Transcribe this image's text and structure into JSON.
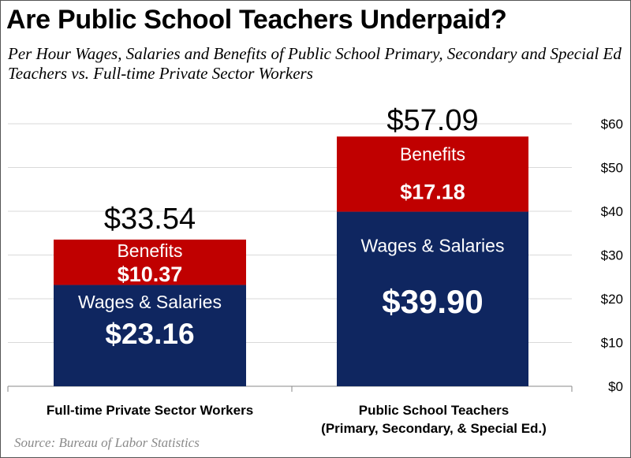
{
  "title": "Are Public School Teachers Underpaid?",
  "subtitle": "Per Hour Wages, Salaries and Benefits of Public School Primary, Secondary and Special Ed Teachers vs. Full-time Private Sector Workers",
  "source": "Source:  Bureau of Labor Statistics",
  "colors": {
    "wages": "#0f2660",
    "benefits": "#c00000",
    "grid": "#d9d9d9",
    "axis": "#888888"
  },
  "chart_data": {
    "type": "bar",
    "stacked": true,
    "categories": [
      [
        "Full-time Private Sector Workers"
      ],
      [
        "Public School Teachers",
        "(Primary, Secondary, & Special Ed.)"
      ]
    ],
    "series": [
      {
        "name": "Wages & Salaries",
        "values": [
          23.16,
          39.9
        ],
        "labels": [
          "$23.16",
          "$39.90"
        ]
      },
      {
        "name": "Benefits",
        "values": [
          10.37,
          17.18
        ],
        "labels": [
          "$10.37",
          "$17.18"
        ]
      }
    ],
    "totals": [
      33.54,
      57.09
    ],
    "total_labels": [
      "$33.54",
      "$57.09"
    ],
    "ylim": [
      0,
      60
    ],
    "yticks": [
      0,
      10,
      20,
      30,
      40,
      50,
      60
    ],
    "ytick_labels": [
      "$0",
      "$10",
      "$20",
      "$30",
      "$40",
      "$50",
      "$60"
    ],
    "grid": true,
    "y_axis_position": "right"
  }
}
